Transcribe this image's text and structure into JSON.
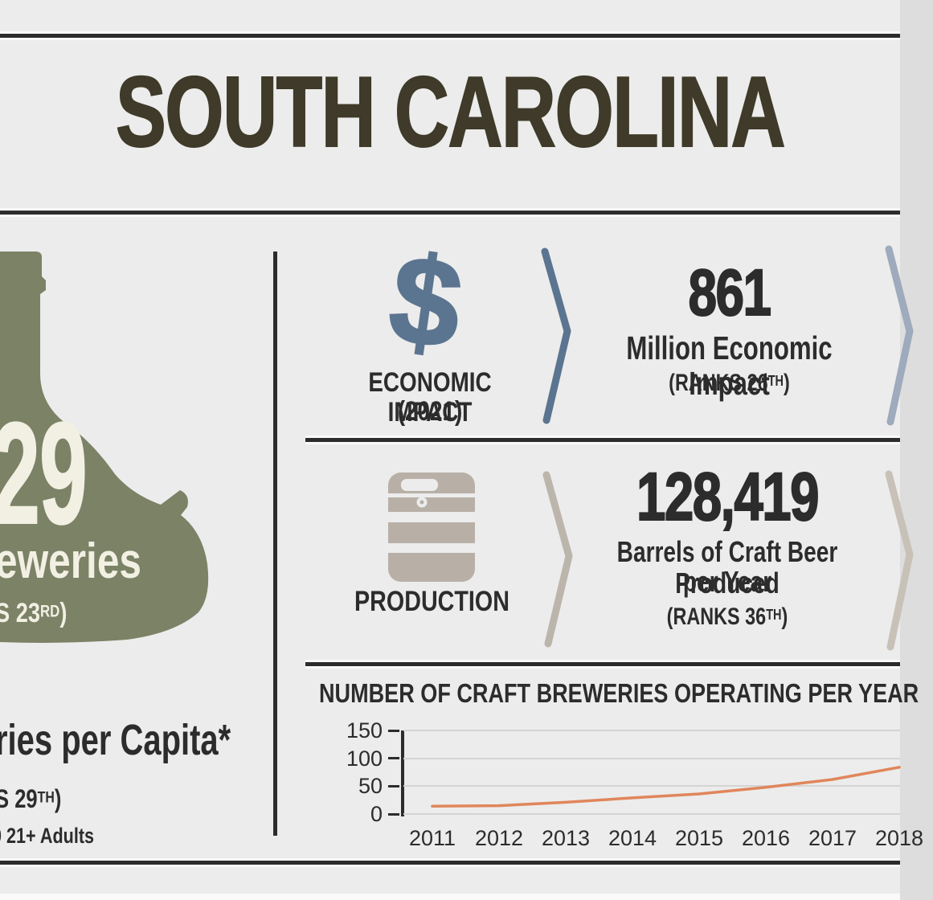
{
  "header": {
    "title": "SOUTH CAROLINA"
  },
  "left_panel": {
    "visible_count_fragment": "29",
    "visible_label_fragment": "eweries",
    "count_rank_fragment": {
      "pre": "S 23",
      "sup": "RD",
      "post": ")"
    },
    "per_capita_fragment": "ries per Capita*",
    "per_capita_rank_fragment": {
      "pre": "S 29",
      "sup": "TH",
      "post": ")"
    },
    "footnote_fragment": "0 21+ Adults"
  },
  "economic_impact": {
    "icon_glyph": "$",
    "label_line1": "ECONOMIC IMPACT",
    "label_line2": "(2021)",
    "value": "861",
    "value_desc": "Million Economic Impact",
    "rank": {
      "pre": "(RANKS 26",
      "sup": "TH",
      "post": ")"
    }
  },
  "production": {
    "label": "PRODUCTION",
    "value": "128,419",
    "value_desc_line1": "Barrels of Craft Beer Produced",
    "value_desc_line2": "per Year",
    "rank": {
      "pre": "(RANKS 36",
      "sup": "TH",
      "post": ")"
    }
  },
  "chart_data": {
    "type": "line",
    "title": "NUMBER OF CRAFT BREWERIES OPERATING PER YEAR",
    "x": [
      2011,
      2012,
      2013,
      2014,
      2015,
      2016,
      2017,
      2018
    ],
    "values": [
      14,
      15,
      21,
      29,
      36,
      48,
      62,
      84
    ],
    "xlabel": "",
    "ylabel": "",
    "ylim": [
      0,
      150
    ],
    "yticks": [
      0,
      50,
      100,
      150
    ],
    "grid": true,
    "legend": "none",
    "line_color": "#e0865b"
  },
  "colors": {
    "background": "#ececec",
    "rule_dark": "#2c2c2c",
    "title_olive": "#3f3a29",
    "jug_green": "#7b8266",
    "jug_text": "#f2f0e3",
    "slate_blue": "#5b7590",
    "slate_light": "#9dabbc",
    "keg_gray": "#b8b0a7",
    "keg_gray_light": "#c8c1b8",
    "chart_line_orange": "#e0865b",
    "gridline": "#d4d4d4"
  }
}
